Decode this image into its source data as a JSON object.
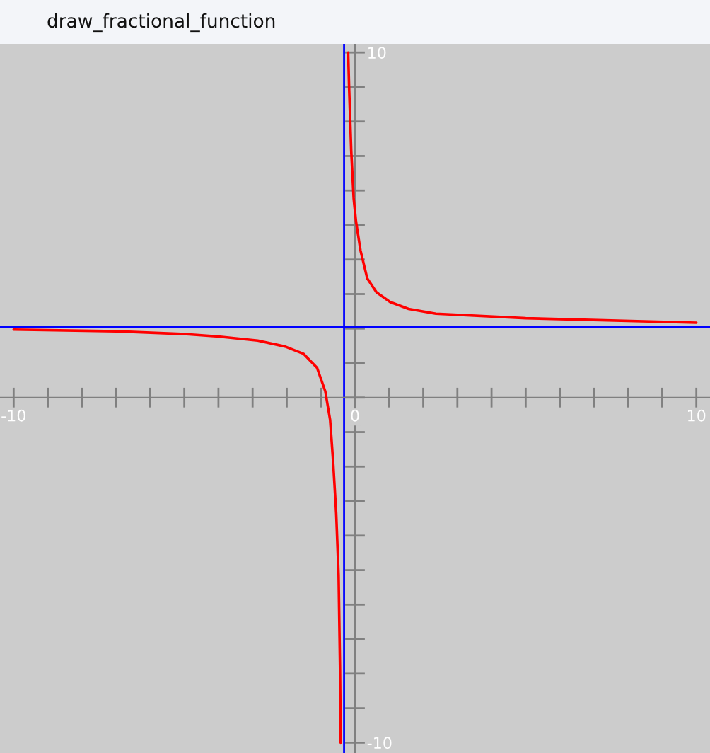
{
  "chart_data": {
    "type": "line",
    "title": "draw_fractional_function",
    "x": [
      -10,
      -7,
      -5,
      -4,
      -2.85,
      -2.05,
      -1.51,
      -1.11,
      -0.87,
      -0.73,
      -0.64,
      -0.55,
      -0.48,
      -0.44,
      -0.42,
      null,
      -0.2,
      -0.17,
      -0.11,
      -0.04,
      0.03,
      0.16,
      0.36,
      0.63,
      1.03,
      1.57,
      2.37,
      5,
      10
    ],
    "series": [
      {
        "color": "#ff0000",
        "values": [
          1.97,
          1.92,
          1.84,
          1.77,
          1.65,
          1.48,
          1.27,
          0.86,
          0.18,
          -0.64,
          -1.87,
          -3.37,
          -5.15,
          -7.75,
          -10,
          null,
          10,
          8.9,
          7.14,
          5.78,
          5.1,
          4.27,
          3.45,
          3.05,
          2.77,
          2.57,
          2.43,
          2.3,
          2.17
        ]
      }
    ],
    "xlim": [
      -10.4,
      10.4
    ],
    "ylim": [
      -10.3,
      10.25
    ],
    "xticks": [
      -10,
      {
        "value": -9,
        "label": null
      },
      {
        "value": -8,
        "label": null
      },
      {
        "value": -7,
        "label": null
      },
      {
        "value": -6,
        "label": null
      },
      {
        "value": -5,
        "label": null
      },
      {
        "value": -4,
        "label": null
      },
      {
        "value": -3,
        "label": null
      },
      {
        "value": -2,
        "label": null
      },
      {
        "value": -1,
        "label": null
      },
      0,
      {
        "value": 1,
        "label": null
      },
      {
        "value": 2,
        "label": null
      },
      {
        "value": 3,
        "label": null
      },
      {
        "value": 4,
        "label": null
      },
      {
        "value": 5,
        "label": null
      },
      {
        "value": 6,
        "label": null
      },
      {
        "value": 7,
        "label": null
      },
      {
        "value": 8,
        "label": null
      },
      {
        "value": 9,
        "label": null
      },
      10
    ],
    "yticks": [
      -10,
      {
        "value": -9,
        "label": null
      },
      {
        "value": -8,
        "label": null
      },
      {
        "value": -7,
        "label": null
      },
      {
        "value": -6,
        "label": null
      },
      {
        "value": -5,
        "label": null
      },
      {
        "value": -4,
        "label": null
      },
      {
        "value": -3,
        "label": null
      },
      {
        "value": -2,
        "label": null
      },
      {
        "value": -1,
        "label": null
      },
      {
        "value": 0,
        "label": null
      },
      {
        "value": 1,
        "label": null
      },
      {
        "value": 2,
        "label": null
      },
      {
        "value": 3,
        "label": null
      },
      {
        "value": 4,
        "label": null
      },
      {
        "value": 5,
        "label": null
      },
      {
        "value": 6,
        "label": null
      },
      {
        "value": 7,
        "label": null
      },
      {
        "value": 8,
        "label": null
      },
      {
        "value": 9,
        "label": null
      },
      10
    ],
    "ref_lines": [
      {
        "axis": "x",
        "value": -0.32,
        "color": "#0000ff"
      },
      {
        "axis": "y",
        "value": 2.05,
        "color": "#0000ff"
      }
    ],
    "grid": false,
    "marker": "none",
    "line_style": "solid"
  }
}
